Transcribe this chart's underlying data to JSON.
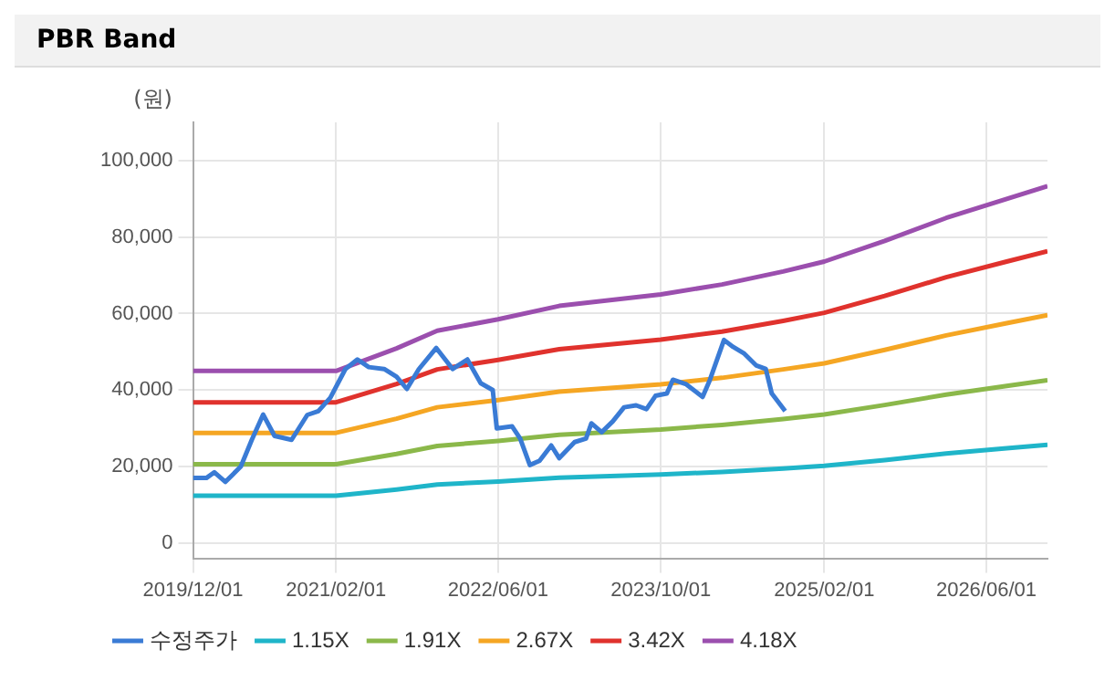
{
  "chart_data": {
    "type": "line",
    "title": "PBR Band",
    "ylabel": "(원)",
    "xlim": [
      "2019-12-01",
      "2026-12-01"
    ],
    "xticks": [
      {
        "value": "2019-12-01",
        "label": "2019/12/01"
      },
      {
        "value": "2021-02-01",
        "label": "2021/02/01"
      },
      {
        "value": "2022-06-01",
        "label": "2022/06/01"
      },
      {
        "value": "2023-10-01",
        "label": "2023/10/01"
      },
      {
        "value": "2025-02-01",
        "label": "2025/02/01"
      },
      {
        "value": "2026-06-01",
        "label": "2026/06/01"
      }
    ],
    "ylim": [
      -4000,
      110000
    ],
    "yticks": [
      {
        "value": 0,
        "label": "0"
      },
      {
        "value": 20000,
        "label": "20,000"
      },
      {
        "value": 40000,
        "label": "40,000"
      },
      {
        "value": 60000,
        "label": "60,000"
      },
      {
        "value": 80000,
        "label": "80,000"
      },
      {
        "value": 100000,
        "label": "100,000"
      }
    ],
    "grid": true,
    "legend": "bottom",
    "marker": "none",
    "line_style": "solid",
    "series": [
      {
        "name": "수정주가",
        "color": "#3a7bd5",
        "x": [
          "2019-12-01",
          "2020-01-10",
          "2020-02-03",
          "2020-03-07",
          "2020-04-22",
          "2020-05-25",
          "2020-06-28",
          "2020-08-01",
          "2020-09-21",
          "2020-11-07",
          "2020-12-10",
          "2021-01-15",
          "2021-03-01",
          "2021-04-06",
          "2021-05-10",
          "2021-06-25",
          "2021-08-01",
          "2021-09-01",
          "2021-10-07",
          "2021-11-28",
          "2022-01-16",
          "2022-03-01",
          "2022-04-10",
          "2022-05-16",
          "2022-05-28",
          "2022-07-13",
          "2022-08-06",
          "2022-09-04",
          "2022-10-03",
          "2022-11-07",
          "2022-12-01",
          "2023-01-16",
          "2023-02-19",
          "2023-03-07",
          "2023-04-07",
          "2023-05-10",
          "2023-06-13",
          "2023-07-19",
          "2023-08-19",
          "2023-09-15",
          "2023-10-19",
          "2023-11-06",
          "2023-12-16",
          "2024-02-03",
          "2024-02-25",
          "2024-04-07",
          "2024-05-04",
          "2024-06-07",
          "2024-07-13",
          "2024-08-10",
          "2024-08-28",
          "2024-10-07"
        ],
        "values": [
          17000,
          17000,
          18500,
          16000,
          20000,
          27000,
          33600,
          28000,
          27000,
          33500,
          34500,
          38000,
          45500,
          48000,
          46000,
          45500,
          43500,
          40300,
          45500,
          51000,
          45500,
          48000,
          41800,
          40000,
          30000,
          30500,
          27300,
          20400,
          21500,
          25500,
          22200,
          26400,
          27300,
          31300,
          29000,
          31800,
          35500,
          36000,
          35000,
          38500,
          39100,
          42700,
          41500,
          38200,
          42700,
          53100,
          51300,
          49500,
          46400,
          45500,
          39100,
          34500
        ]
      },
      {
        "name": "1.15X",
        "color": "#1fb5c9",
        "x": [
          "2019-12-01",
          "2021-02-01",
          "2021-08-01",
          "2021-12-01",
          "2022-06-01",
          "2022-12-01",
          "2023-10-01",
          "2024-04-01",
          "2024-10-01",
          "2025-02-01",
          "2025-08-01",
          "2026-02-01",
          "2026-08-01",
          "2026-12-01"
        ],
        "values": [
          12400,
          12400,
          14000,
          15300,
          16100,
          17100,
          17900,
          18600,
          19500,
          20200,
          21700,
          23400,
          24800,
          25700
        ]
      },
      {
        "name": "1.91X",
        "color": "#8bb84a",
        "x": [
          "2019-12-01",
          "2021-02-01",
          "2021-08-01",
          "2021-12-01",
          "2022-06-01",
          "2022-12-01",
          "2023-10-01",
          "2024-04-01",
          "2024-10-01",
          "2025-02-01",
          "2025-08-01",
          "2026-02-01",
          "2026-08-01",
          "2026-12-01"
        ],
        "values": [
          20600,
          20600,
          23300,
          25400,
          26700,
          28300,
          29700,
          30900,
          32400,
          33600,
          36100,
          38800,
          41100,
          42600
        ]
      },
      {
        "name": "2.67X",
        "color": "#f5a623",
        "x": [
          "2019-12-01",
          "2021-02-01",
          "2021-08-01",
          "2021-12-01",
          "2022-06-01",
          "2022-12-01",
          "2023-10-01",
          "2024-04-01",
          "2024-10-01",
          "2025-02-01",
          "2025-08-01",
          "2026-02-01",
          "2026-08-01",
          "2026-12-01"
        ],
        "values": [
          28800,
          28800,
          32500,
          35500,
          37400,
          39600,
          41500,
          43200,
          45400,
          47000,
          50500,
          54300,
          57500,
          59600
        ]
      },
      {
        "name": "3.42X",
        "color": "#e0322d",
        "x": [
          "2019-12-01",
          "2021-02-01",
          "2021-08-01",
          "2021-12-01",
          "2022-06-01",
          "2022-12-01",
          "2023-10-01",
          "2024-04-01",
          "2024-10-01",
          "2025-02-01",
          "2025-08-01",
          "2026-02-01",
          "2026-08-01",
          "2026-12-01"
        ],
        "values": [
          36800,
          36800,
          41600,
          45400,
          47900,
          50700,
          53200,
          55300,
          58100,
          60200,
          64600,
          69500,
          73600,
          76300
        ]
      },
      {
        "name": "4.18X",
        "color": "#9b4fae",
        "x": [
          "2019-12-01",
          "2021-02-01",
          "2021-08-01",
          "2021-12-01",
          "2022-06-01",
          "2022-12-01",
          "2023-10-01",
          "2024-04-01",
          "2024-10-01",
          "2025-02-01",
          "2025-08-01",
          "2026-02-01",
          "2026-08-01",
          "2026-12-01"
        ],
        "values": [
          45000,
          45000,
          50900,
          55500,
          58500,
          62000,
          65000,
          67600,
          71000,
          73600,
          79000,
          85000,
          90000,
          93300
        ]
      }
    ]
  }
}
